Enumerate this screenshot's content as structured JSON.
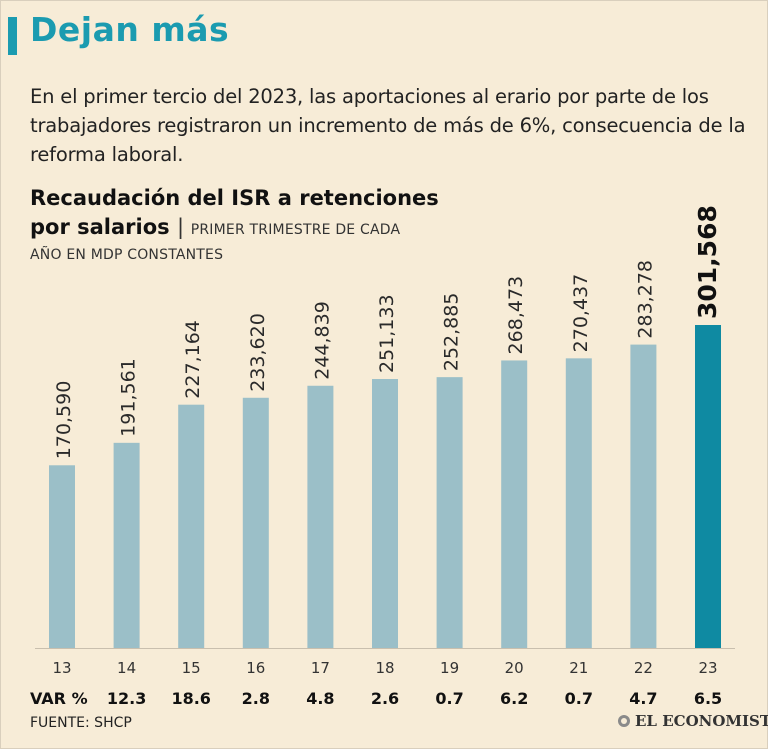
{
  "header": {
    "title": "Dejan más",
    "intro": "En el primer tercio del 2023, las aportaciones al erario por parte de los trabajadores registraron un incremento de más de 6%, consecuencia de la reforma laboral."
  },
  "chart_data": {
    "type": "bar",
    "title": "Recaudación del ISR a retenciones por salarios",
    "subtitle_part1": "PRIMER TRIMESTRE DE CADA",
    "subtitle_part2": "AÑO EN MDP CONSTANTES",
    "categories": [
      "13",
      "14",
      "15",
      "16",
      "17",
      "18",
      "19",
      "20",
      "21",
      "22",
      "23"
    ],
    "values": [
      170590,
      191561,
      227164,
      233620,
      244839,
      251133,
      252885,
      268473,
      270437,
      283278,
      301568
    ],
    "value_labels": [
      "170,590",
      "191,561",
      "227,164",
      "233,620",
      "244,839",
      "251,133",
      "252,885",
      "268,473",
      "270,437",
      "283,278",
      "301,568"
    ],
    "var_label": "VAR %",
    "var_values": [
      "12.3",
      "18.6",
      "2.8",
      "4.8",
      "2.6",
      "0.7",
      "6.2",
      "0.7",
      "4.7",
      "6.5"
    ],
    "highlight_index": 10,
    "ylim": [
      0,
      301568
    ],
    "colors": {
      "bar": "#9bbfc8",
      "highlight": "#0f8aa2",
      "text": "#2a2a2a"
    }
  },
  "footer": {
    "source": "FUENTE: SHCP",
    "logo": "EL ECONOMISTA"
  }
}
